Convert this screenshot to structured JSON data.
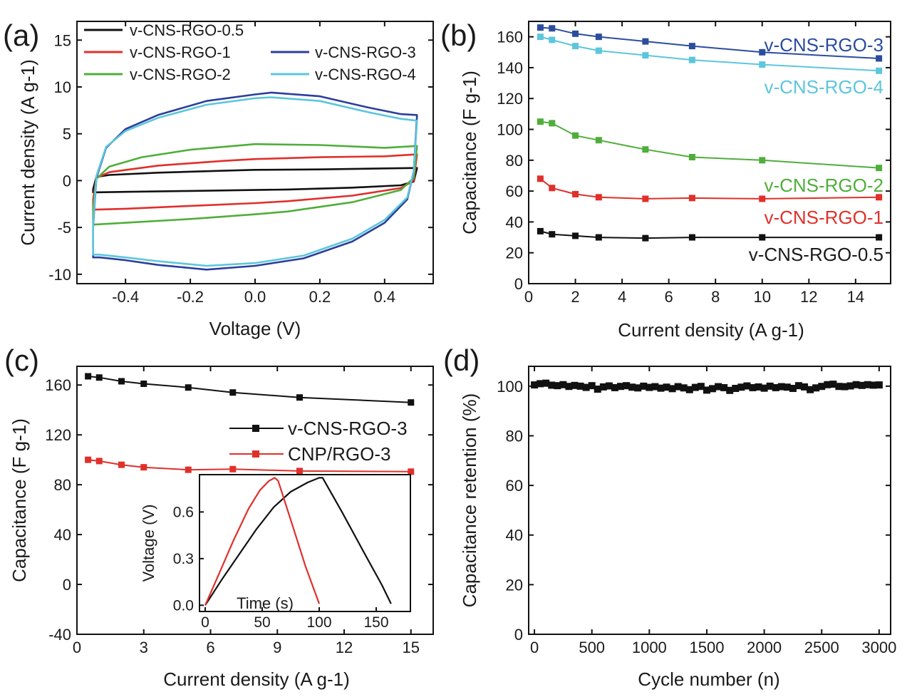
{
  "chart_data": [
    {
      "panel": "a",
      "type": "line",
      "panel_label": "(a)",
      "xlabel": "Voltage (V)",
      "ylabel": "Current density (A g-1)",
      "xlim": [
        -0.55,
        0.55
      ],
      "ylim": [
        -11,
        17
      ],
      "xticks": [
        -0.4,
        -0.2,
        0.0,
        0.2,
        0.4
      ],
      "xtick_labels": [
        "-0.4",
        "-0.2",
        "0.0",
        "0.2",
        "0.4"
      ],
      "yticks": [
        -10,
        -5,
        0,
        5,
        10,
        15
      ],
      "ytick_labels": [
        "-10",
        "-5",
        "0",
        "5",
        "10",
        "15"
      ],
      "legend_position": "top",
      "series": [
        {
          "name": "v-CNS-RGO-0.5",
          "color": "#111111",
          "top": [
            [
              -0.5,
              -0.9
            ],
            [
              -0.49,
              0.4
            ],
            [
              -0.45,
              0.6
            ],
            [
              -0.3,
              0.85
            ],
            [
              -0.1,
              1.05
            ],
            [
              0.0,
              1.15
            ],
            [
              0.2,
              1.2
            ],
            [
              0.4,
              1.3
            ],
            [
              0.5,
              1.35
            ]
          ],
          "bottom": [
            [
              0.5,
              1.35
            ],
            [
              0.49,
              -0.1
            ],
            [
              0.45,
              -0.5
            ],
            [
              0.3,
              -0.75
            ],
            [
              0.1,
              -0.95
            ],
            [
              0.0,
              -1.0
            ],
            [
              -0.2,
              -1.1
            ],
            [
              -0.4,
              -1.2
            ],
            [
              -0.5,
              -1.25
            ],
            [
              -0.5,
              -0.9
            ]
          ]
        },
        {
          "name": "v-CNS-RGO-1",
          "color": "#e0302a",
          "top": [
            [
              -0.5,
              -2.0
            ],
            [
              -0.49,
              0.3
            ],
            [
              -0.45,
              0.9
            ],
            [
              -0.3,
              1.6
            ],
            [
              -0.1,
              2.1
            ],
            [
              0.0,
              2.3
            ],
            [
              0.2,
              2.5
            ],
            [
              0.4,
              2.6
            ],
            [
              0.5,
              2.8
            ]
          ],
          "bottom": [
            [
              0.5,
              2.8
            ],
            [
              0.49,
              0.0
            ],
            [
              0.45,
              -0.8
            ],
            [
              0.3,
              -1.6
            ],
            [
              0.1,
              -2.2
            ],
            [
              0.0,
              -2.4
            ],
            [
              -0.2,
              -2.7
            ],
            [
              -0.4,
              -3.0
            ],
            [
              -0.5,
              -3.1
            ],
            [
              -0.5,
              -2.0
            ]
          ]
        },
        {
          "name": "v-CNS-RGO-2",
          "color": "#4fae3a",
          "top": [
            [
              -0.5,
              -3.0
            ],
            [
              -0.49,
              0.2
            ],
            [
              -0.45,
              1.5
            ],
            [
              -0.35,
              2.5
            ],
            [
              -0.2,
              3.3
            ],
            [
              0.0,
              3.9
            ],
            [
              0.2,
              3.8
            ],
            [
              0.4,
              3.5
            ],
            [
              0.5,
              3.7
            ]
          ],
          "bottom": [
            [
              0.5,
              3.7
            ],
            [
              0.49,
              0.3
            ],
            [
              0.45,
              -1.0
            ],
            [
              0.3,
              -2.3
            ],
            [
              0.1,
              -3.3
            ],
            [
              0.0,
              -3.6
            ],
            [
              -0.2,
              -4.1
            ],
            [
              -0.4,
              -4.5
            ],
            [
              -0.5,
              -4.7
            ],
            [
              -0.5,
              -3.0
            ]
          ]
        },
        {
          "name": "v-CNS-RGO-3",
          "color": "#2b3f9a",
          "top": [
            [
              -0.5,
              -5.0
            ],
            [
              -0.49,
              0.3
            ],
            [
              -0.46,
              3.5
            ],
            [
              -0.4,
              5.5
            ],
            [
              -0.3,
              7.0
            ],
            [
              -0.15,
              8.5
            ],
            [
              0.0,
              9.2
            ],
            [
              0.05,
              9.4
            ],
            [
              0.2,
              9.0
            ],
            [
              0.35,
              7.8
            ],
            [
              0.45,
              7.1
            ],
            [
              0.5,
              7.0
            ]
          ],
          "bottom": [
            [
              0.5,
              7.0
            ],
            [
              0.49,
              1.0
            ],
            [
              0.47,
              -2.0
            ],
            [
              0.4,
              -4.5
            ],
            [
              0.3,
              -6.5
            ],
            [
              0.15,
              -8.3
            ],
            [
              0.0,
              -9.1
            ],
            [
              -0.15,
              -9.5
            ],
            [
              -0.3,
              -9.0
            ],
            [
              -0.4,
              -8.5
            ],
            [
              -0.48,
              -8.2
            ],
            [
              -0.5,
              -8.2
            ],
            [
              -0.5,
              -5.0
            ]
          ]
        },
        {
          "name": "v-CNS-RGO-4",
          "color": "#5cc6dc",
          "top": [
            [
              -0.5,
              -4.8
            ],
            [
              -0.49,
              0.5
            ],
            [
              -0.46,
              3.6
            ],
            [
              -0.4,
              5.3
            ],
            [
              -0.3,
              6.7
            ],
            [
              -0.15,
              8.1
            ],
            [
              0.0,
              8.8
            ],
            [
              0.05,
              8.9
            ],
            [
              0.2,
              8.5
            ],
            [
              0.35,
              7.3
            ],
            [
              0.45,
              6.6
            ],
            [
              0.5,
              6.4
            ]
          ],
          "bottom": [
            [
              0.5,
              6.4
            ],
            [
              0.49,
              1.0
            ],
            [
              0.47,
              -1.8
            ],
            [
              0.4,
              -4.2
            ],
            [
              0.3,
              -6.2
            ],
            [
              0.15,
              -8.0
            ],
            [
              0.0,
              -8.8
            ],
            [
              -0.15,
              -9.1
            ],
            [
              -0.3,
              -8.6
            ],
            [
              -0.4,
              -8.2
            ],
            [
              -0.48,
              -7.9
            ],
            [
              -0.5,
              -7.9
            ],
            [
              -0.5,
              -4.8
            ]
          ]
        }
      ]
    },
    {
      "panel": "b",
      "type": "line",
      "panel_label": "(b)",
      "xlabel": "Current density (A g-1)",
      "ylabel": "Capacitance (F g-1)",
      "xlim": [
        0,
        15.5
      ],
      "ylim": [
        0,
        170
      ],
      "xticks": [
        0,
        2,
        4,
        6,
        8,
        10,
        12,
        14
      ],
      "xtick_labels": [
        "0",
        "2",
        "4",
        "6",
        "8",
        "10",
        "12",
        "14"
      ],
      "yticks": [
        0,
        20,
        40,
        60,
        80,
        100,
        120,
        140,
        160
      ],
      "ytick_labels": [
        "0",
        "20",
        "40",
        "60",
        "80",
        "100",
        "120",
        "140",
        "160"
      ],
      "x": [
        0.5,
        1,
        2,
        3,
        5,
        7,
        10,
        15
      ],
      "series": [
        {
          "name": "v-CNS-RGO-3",
          "color": "#2b4d9e",
          "values": [
            166,
            165.5,
            162,
            160,
            157,
            154,
            150,
            146
          ]
        },
        {
          "name": "v-CNS-RGO-4",
          "color": "#5cc6dc",
          "values": [
            160,
            158,
            154,
            151,
            148,
            145,
            142,
            138
          ]
        },
        {
          "name": "v-CNS-RGO-2",
          "color": "#4fae3a",
          "values": [
            105,
            104,
            96,
            93,
            87,
            82,
            80,
            75
          ]
        },
        {
          "name": "v-CNS-RGO-1",
          "color": "#e0302a",
          "values": [
            68,
            62,
            58,
            56,
            55,
            55.5,
            55,
            56
          ]
        },
        {
          "name": "v-CNS-RGO-0.5",
          "color": "#111111",
          "values": [
            34,
            32,
            31,
            30,
            29.5,
            30,
            30,
            30
          ]
        }
      ]
    },
    {
      "panel": "c",
      "type": "line",
      "panel_label": "(c)",
      "xlabel": "Current density (A g-1)",
      "ylabel": "Capacitance (F g-1)",
      "xlim": [
        0,
        16
      ],
      "ylim": [
        -40,
        175
      ],
      "xticks": [
        0,
        3,
        6,
        9,
        12,
        15
      ],
      "xtick_labels": [
        "0",
        "3",
        "6",
        "9",
        "12",
        "15"
      ],
      "yticks": [
        -40,
        0,
        40,
        80,
        120,
        160
      ],
      "ytick_labels": [
        "-40",
        "0",
        "40",
        "80",
        "120",
        "160"
      ],
      "x": [
        0.5,
        1,
        2,
        3,
        5,
        7,
        10,
        15
      ],
      "series": [
        {
          "name": "v-CNS-RGO-3",
          "color": "#111111",
          "values": [
            167,
            166,
            163,
            161,
            158,
            154,
            150,
            146
          ]
        },
        {
          "name": "CNP/RGO-3",
          "color": "#e0302a",
          "values": [
            100,
            99,
            96,
            94,
            92,
            92.5,
            91,
            90.5
          ]
        }
      ],
      "inset": {
        "xlabel": "Time (s)",
        "ylabel": "Voltage (V)",
        "xlim": [
          -5,
          180
        ],
        "ylim": [
          -0.04,
          0.84
        ],
        "xticks": [
          0,
          50,
          100,
          150
        ],
        "xtick_labels": [
          "0",
          "50",
          "100",
          "150"
        ],
        "yticks": [
          0.0,
          0.3,
          0.6
        ],
        "ytick_labels": [
          "0.0",
          "0.3",
          "0.6"
        ],
        "series": [
          {
            "name": "v-CNS-RGO-3",
            "color": "#111111",
            "points": [
              [
                0,
                0
              ],
              [
                15,
                0.17
              ],
              [
                30,
                0.33
              ],
              [
                45,
                0.49
              ],
              [
                60,
                0.63
              ],
              [
                75,
                0.73
              ],
              [
                90,
                0.79
              ],
              [
                100,
                0.82
              ],
              [
                103,
                0.82
              ],
              [
                120,
                0.6
              ],
              [
                140,
                0.33
              ],
              [
                155,
                0.13
              ],
              [
                163,
                0.01
              ]
            ]
          },
          {
            "name": "CNP/RGO-3",
            "color": "#e0302a",
            "points": [
              [
                0,
                0
              ],
              [
                12,
                0.2
              ],
              [
                25,
                0.42
              ],
              [
                38,
                0.62
              ],
              [
                48,
                0.74
              ],
              [
                56,
                0.8
              ],
              [
                61,
                0.82
              ],
              [
                64,
                0.8
              ],
              [
                75,
                0.55
              ],
              [
                88,
                0.25
              ],
              [
                100,
                0.01
              ]
            ]
          }
        ]
      }
    },
    {
      "panel": "d",
      "type": "scatter",
      "panel_label": "(d)",
      "xlabel": "Cycle number (n)",
      "ylabel": "Capacitance retention (%)",
      "xlim": [
        -50,
        3100
      ],
      "ylim": [
        0,
        108
      ],
      "xticks": [
        0,
        500,
        1000,
        1500,
        2000,
        2500,
        3000
      ],
      "xtick_labels": [
        "0",
        "500",
        "1000",
        "1500",
        "2000",
        "2500",
        "3000"
      ],
      "yticks": [
        0,
        20,
        40,
        60,
        80,
        100
      ],
      "ytick_labels": [
        "0",
        "20",
        "40",
        "60",
        "80",
        "100"
      ],
      "series": [
        {
          "name": "retention",
          "color": "#111111",
          "x": [
            0,
            50,
            100,
            150,
            200,
            250,
            300,
            350,
            400,
            450,
            500,
            550,
            600,
            650,
            700,
            750,
            800,
            850,
            900,
            950,
            1000,
            1050,
            1100,
            1150,
            1200,
            1250,
            1300,
            1350,
            1400,
            1450,
            1500,
            1550,
            1600,
            1650,
            1700,
            1750,
            1800,
            1850,
            1900,
            1950,
            2000,
            2050,
            2100,
            2150,
            2200,
            2250,
            2300,
            2350,
            2400,
            2450,
            2500,
            2550,
            2600,
            2650,
            2700,
            2750,
            2800,
            2850,
            2900,
            2950,
            3000
          ],
          "values": [
            100.5,
            101,
            101.2,
            100.4,
            100.2,
            100.6,
            99.9,
            100.3,
            100.0,
            99.5,
            100.2,
            98.8,
            99.7,
            100.1,
            99.4,
            99.9,
            100.2,
            99.6,
            99.3,
            100.0,
            99.5,
            99.8,
            99.2,
            99.6,
            99.0,
            99.8,
            99.3,
            98.6,
            99.5,
            99.9,
            98.4,
            99.0,
            99.8,
            99.4,
            98.3,
            99.1,
            99.6,
            100.1,
            99.4,
            99.7,
            99.2,
            100.0,
            99.4,
            99.8,
            99.6,
            99.1,
            100.2,
            99.7,
            98.6,
            99.3,
            99.9,
            100.6,
            100.8,
            99.9,
            99.8,
            100.1,
            100.6,
            100.3,
            100.6,
            100.4,
            100.5
          ]
        }
      ]
    }
  ]
}
